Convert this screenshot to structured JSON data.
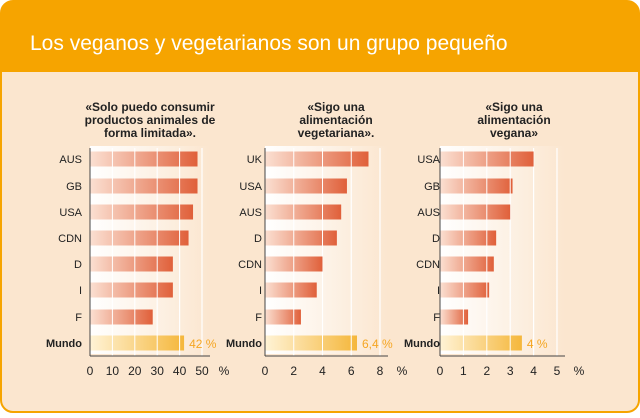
{
  "title": "Los veganos y vegetarianos son un grupo pequeño",
  "colors": {
    "header": "#f6a400",
    "panel": "#fbe6cf",
    "bar_dark": "#e0603a",
    "bar_light": "#fbe0d2",
    "world_dark": "#f5b73b",
    "world_light": "#fff3d6",
    "world_label": "#f5a623"
  },
  "chart_data": [
    {
      "type": "bar",
      "title": "«Solo puedo consumir productos animales de forma limitada».",
      "title_lines": [
        "«Solo puedo consumir",
        "productos animales de",
        "forma limitada»."
      ],
      "categories": [
        "AUS",
        "GB",
        "USA",
        "CDN",
        "D",
        "I",
        "F",
        "Mundo"
      ],
      "values": [
        48,
        48,
        46,
        44,
        37,
        37,
        28,
        42
      ],
      "world_label": "42 %",
      "xlim": [
        0,
        50
      ],
      "xticks": [
        "0",
        "10",
        "20",
        "30",
        "40",
        "50"
      ],
      "unit": "%"
    },
    {
      "type": "bar",
      "title": "«Sigo una alimentación vegetariana».",
      "title_lines": [
        "«Sigo una",
        "alimentación",
        "vegetariana»."
      ],
      "categories": [
        "UK",
        "USA",
        "AUS",
        "D",
        "CDN",
        "I",
        "F",
        "Mundo"
      ],
      "values": [
        7.2,
        5.7,
        5.3,
        5.0,
        4.0,
        3.6,
        2.5,
        6.4
      ],
      "world_label": "6,4 %",
      "xlim": [
        0,
        8
      ],
      "xticks": [
        "0",
        "2",
        "4",
        "6",
        "8"
      ],
      "unit": "%"
    },
    {
      "type": "bar",
      "title": "«Sigo una alimentación vegana»",
      "title_lines": [
        "«Sigo una",
        "alimentación",
        "vegana»"
      ],
      "categories": [
        "USA",
        "GB",
        "AUS",
        "D",
        "CDN",
        "I",
        "F",
        "Mundo"
      ],
      "values": [
        4.0,
        3.1,
        3.0,
        2.4,
        2.3,
        2.1,
        1.2,
        3.5
      ],
      "world_label": "4 %",
      "xlim": [
        0,
        5
      ],
      "xticks": [
        "0",
        "1",
        "2",
        "3",
        "4",
        "5"
      ],
      "unit": "%"
    }
  ]
}
